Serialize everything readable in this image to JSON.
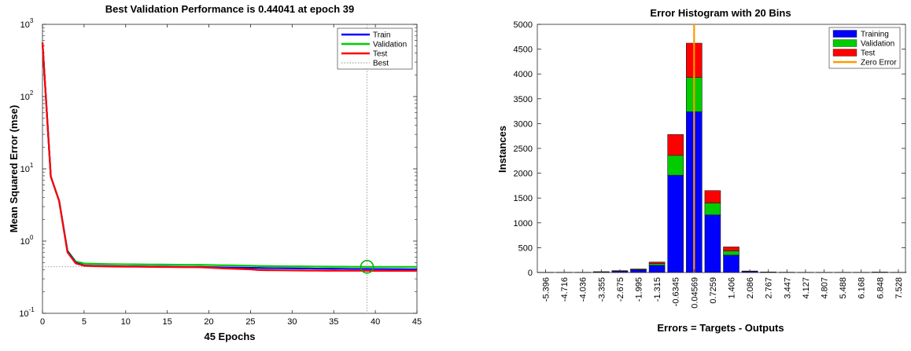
{
  "chart_data": [
    {
      "type": "line",
      "title": "Best Validation Performance is 0.44041 at epoch 39",
      "xlabel": "45 Epochs",
      "ylabel": "Mean Squared Error  (mse)",
      "y_scale": "log",
      "xlim": [
        0,
        45
      ],
      "ylim": [
        0.1,
        1000
      ],
      "x_ticks": [
        "0",
        "5",
        "10",
        "15",
        "20",
        "25",
        "30",
        "35",
        "40",
        "45"
      ],
      "y_ticks": [
        {
          "base": "10",
          "exp": "-1"
        },
        {
          "base": "10",
          "exp": "0"
        },
        {
          "base": "10",
          "exp": "1"
        },
        {
          "base": "10",
          "exp": "2"
        },
        {
          "base": "10",
          "exp": "3"
        }
      ],
      "legend_position": "top-right",
      "x": [
        0,
        1,
        2,
        3,
        4,
        5,
        6,
        7,
        8,
        9,
        10,
        11,
        12,
        13,
        14,
        15,
        16,
        17,
        18,
        19,
        20,
        21,
        22,
        23,
        24,
        25,
        26,
        27,
        28,
        29,
        30,
        31,
        32,
        33,
        34,
        35,
        36,
        37,
        38,
        39,
        40,
        41,
        42,
        43,
        44,
        45
      ],
      "series": [
        {
          "name": "Train",
          "color": "#0000ff",
          "values": [
            560,
            7.8,
            3.6,
            0.72,
            0.5,
            0.46,
            0.455,
            0.452,
            0.45,
            0.448,
            0.447,
            0.446,
            0.445,
            0.444,
            0.443,
            0.442,
            0.441,
            0.44,
            0.44,
            0.439,
            0.436,
            0.434,
            0.432,
            0.43,
            0.428,
            0.426,
            0.424,
            0.422,
            0.421,
            0.42,
            0.419,
            0.418,
            0.417,
            0.416,
            0.415,
            0.414,
            0.413,
            0.412,
            0.412,
            0.411,
            0.41,
            0.41,
            0.409,
            0.409,
            0.408,
            0.408
          ]
        },
        {
          "name": "Validation",
          "color": "#00cc00",
          "values": [
            560,
            7.8,
            3.6,
            0.74,
            0.52,
            0.49,
            0.485,
            0.482,
            0.48,
            0.478,
            0.477,
            0.476,
            0.475,
            0.474,
            0.473,
            0.472,
            0.471,
            0.47,
            0.47,
            0.469,
            0.466,
            0.464,
            0.462,
            0.46,
            0.458,
            0.456,
            0.452,
            0.45,
            0.449,
            0.448,
            0.447,
            0.446,
            0.445,
            0.444,
            0.443,
            0.442,
            0.442,
            0.441,
            0.441,
            0.44041,
            0.44,
            0.44,
            0.44,
            0.44,
            0.44,
            0.44
          ]
        },
        {
          "name": "Test",
          "color": "#ff0000",
          "values": [
            560,
            7.8,
            3.6,
            0.7,
            0.49,
            0.455,
            0.45,
            0.447,
            0.445,
            0.443,
            0.442,
            0.441,
            0.44,
            0.439,
            0.438,
            0.437,
            0.436,
            0.435,
            0.435,
            0.434,
            0.428,
            0.423,
            0.418,
            0.414,
            0.41,
            0.406,
            0.397,
            0.395,
            0.394,
            0.393,
            0.392,
            0.391,
            0.39,
            0.39,
            0.389,
            0.389,
            0.388,
            0.388,
            0.388,
            0.388,
            0.387,
            0.387,
            0.387,
            0.387,
            0.387,
            0.387
          ]
        }
      ],
      "best": {
        "name": "Best",
        "epoch": 39,
        "value": 0.44041,
        "color": "#888888"
      }
    },
    {
      "type": "bar",
      "stacked": true,
      "title": "Error Histogram with 20 Bins",
      "xlabel": "Errors = Targets - Outputs",
      "ylabel": "Instances",
      "ylim": [
        0,
        5000
      ],
      "y_ticks": [
        "0",
        "500",
        "1000",
        "1500",
        "2000",
        "2500",
        "3000",
        "3500",
        "4000",
        "4500",
        "5000"
      ],
      "legend_position": "top-right",
      "categories": [
        "-5.396",
        "-4.716",
        "-4.036",
        "-3.355",
        "-2.675",
        "-1.995",
        "-1.315",
        "-0.6345",
        "0.04569",
        "0.7259",
        "1.406",
        "2.086",
        "2.767",
        "3.447",
        "4.127",
        "4.807",
        "5.488",
        "6.168",
        "6.848",
        "7.528"
      ],
      "series": [
        {
          "name": "Training",
          "color": "#0000ff",
          "values": [
            2,
            2,
            2,
            10,
            25,
            50,
            145,
            1960,
            3240,
            1160,
            350,
            20,
            6,
            3,
            2,
            2,
            2,
            2,
            5,
            2
          ]
        },
        {
          "name": "Validation",
          "color": "#00cc00",
          "values": [
            1,
            1,
            1,
            3,
            6,
            10,
            35,
            400,
            690,
            240,
            85,
            5,
            2,
            1,
            1,
            1,
            1,
            1,
            1,
            1
          ]
        },
        {
          "name": "Test",
          "color": "#ff0000",
          "values": [
            1,
            1,
            1,
            3,
            6,
            10,
            30,
            420,
            690,
            250,
            80,
            5,
            2,
            1,
            1,
            1,
            1,
            1,
            1,
            1
          ]
        }
      ],
      "zero_error": {
        "name": "Zero Error",
        "color": "#ff9900",
        "position": "0.04569"
      }
    }
  ]
}
